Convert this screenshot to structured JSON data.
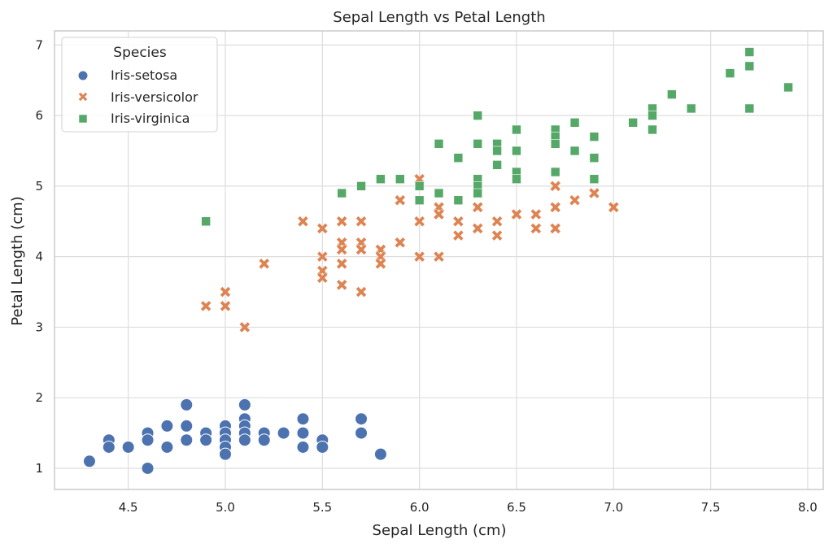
{
  "chart_data": {
    "type": "scatter",
    "title": "Sepal Length vs Petal Length",
    "xlabel": "Sepal Length (cm)",
    "ylabel": "Petal Length (cm)",
    "xlim": [
      4.12,
      8.08
    ],
    "ylim": [
      0.7,
      7.2
    ],
    "xticks": [
      4.5,
      5.0,
      5.5,
      6.0,
      6.5,
      7.0,
      7.5,
      8.0
    ],
    "xtick_labels": [
      "4.5",
      "5.0",
      "5.5",
      "6.0",
      "6.5",
      "7.0",
      "7.5",
      "8.0"
    ],
    "yticks": [
      1,
      2,
      3,
      4,
      5,
      6,
      7
    ],
    "ytick_labels": [
      "1",
      "2",
      "3",
      "4",
      "5",
      "6",
      "7"
    ],
    "grid": true,
    "legend": {
      "title": "Species",
      "placement": "top-left"
    },
    "series": [
      {
        "name": "Iris-setosa",
        "marker": "circle",
        "color": "#4c72b0",
        "points": [
          [
            4.3,
            1.1
          ],
          [
            4.4,
            1.4
          ],
          [
            4.4,
            1.3
          ],
          [
            4.5,
            1.3
          ],
          [
            4.6,
            1.5
          ],
          [
            4.6,
            1.4
          ],
          [
            4.6,
            1.0
          ],
          [
            4.7,
            1.6
          ],
          [
            4.7,
            1.3
          ],
          [
            4.8,
            1.9
          ],
          [
            4.8,
            1.6
          ],
          [
            4.8,
            1.4
          ],
          [
            4.9,
            1.5
          ],
          [
            4.9,
            1.4
          ],
          [
            5.0,
            1.6
          ],
          [
            5.0,
            1.5
          ],
          [
            5.0,
            1.4
          ],
          [
            5.0,
            1.3
          ],
          [
            5.0,
            1.2
          ],
          [
            5.1,
            1.9
          ],
          [
            5.1,
            1.7
          ],
          [
            5.1,
            1.6
          ],
          [
            5.1,
            1.5
          ],
          [
            5.1,
            1.4
          ],
          [
            5.2,
            1.5
          ],
          [
            5.2,
            1.4
          ],
          [
            5.3,
            1.5
          ],
          [
            5.4,
            1.7
          ],
          [
            5.4,
            1.5
          ],
          [
            5.4,
            1.3
          ],
          [
            5.5,
            1.4
          ],
          [
            5.5,
            1.3
          ],
          [
            5.7,
            1.7
          ],
          [
            5.7,
            1.5
          ],
          [
            5.8,
            1.2
          ]
        ]
      },
      {
        "name": "Iris-versicolor",
        "marker": "x",
        "color": "#dd8452",
        "points": [
          [
            4.9,
            3.3
          ],
          [
            5.0,
            3.5
          ],
          [
            5.0,
            3.3
          ],
          [
            5.1,
            3.0
          ],
          [
            5.2,
            3.9
          ],
          [
            5.4,
            4.5
          ],
          [
            5.5,
            4.4
          ],
          [
            5.5,
            4.0
          ],
          [
            5.5,
            3.8
          ],
          [
            5.5,
            3.7
          ],
          [
            5.6,
            4.5
          ],
          [
            5.6,
            4.2
          ],
          [
            5.6,
            4.1
          ],
          [
            5.6,
            3.9
          ],
          [
            5.6,
            3.6
          ],
          [
            5.7,
            4.5
          ],
          [
            5.7,
            4.2
          ],
          [
            5.7,
            4.1
          ],
          [
            5.7,
            3.5
          ],
          [
            5.8,
            4.1
          ],
          [
            5.8,
            4.0
          ],
          [
            5.8,
            3.9
          ],
          [
            5.9,
            4.8
          ],
          [
            5.9,
            4.2
          ],
          [
            6.0,
            5.1
          ],
          [
            6.0,
            4.5
          ],
          [
            6.0,
            4.0
          ],
          [
            6.1,
            4.7
          ],
          [
            6.1,
            4.6
          ],
          [
            6.1,
            4.0
          ],
          [
            6.2,
            4.5
          ],
          [
            6.2,
            4.3
          ],
          [
            6.3,
            4.9
          ],
          [
            6.3,
            4.7
          ],
          [
            6.3,
            4.4
          ],
          [
            6.4,
            4.5
          ],
          [
            6.4,
            4.3
          ],
          [
            6.5,
            4.6
          ],
          [
            6.6,
            4.6
          ],
          [
            6.6,
            4.4
          ],
          [
            6.7,
            5.0
          ],
          [
            6.7,
            4.7
          ],
          [
            6.7,
            4.4
          ],
          [
            6.8,
            4.8
          ],
          [
            6.9,
            4.9
          ],
          [
            7.0,
            4.7
          ]
        ]
      },
      {
        "name": "Iris-virginica",
        "marker": "square",
        "color": "#55a868",
        "points": [
          [
            4.9,
            4.5
          ],
          [
            5.6,
            4.9
          ],
          [
            5.7,
            5.0
          ],
          [
            5.8,
            5.1
          ],
          [
            5.9,
            5.1
          ],
          [
            6.0,
            5.0
          ],
          [
            6.0,
            4.8
          ],
          [
            6.1,
            5.6
          ],
          [
            6.1,
            4.9
          ],
          [
            6.2,
            5.4
          ],
          [
            6.2,
            4.8
          ],
          [
            6.3,
            6.0
          ],
          [
            6.3,
            5.6
          ],
          [
            6.3,
            5.1
          ],
          [
            6.3,
            5.0
          ],
          [
            6.3,
            4.9
          ],
          [
            6.4,
            5.6
          ],
          [
            6.4,
            5.5
          ],
          [
            6.4,
            5.3
          ],
          [
            6.5,
            5.8
          ],
          [
            6.5,
            5.5
          ],
          [
            6.5,
            5.2
          ],
          [
            6.5,
            5.1
          ],
          [
            6.7,
            5.8
          ],
          [
            6.7,
            5.7
          ],
          [
            6.7,
            5.6
          ],
          [
            6.7,
            5.2
          ],
          [
            6.8,
            5.9
          ],
          [
            6.8,
            5.5
          ],
          [
            6.9,
            5.7
          ],
          [
            6.9,
            5.4
          ],
          [
            6.9,
            5.1
          ],
          [
            7.1,
            5.9
          ],
          [
            7.2,
            6.1
          ],
          [
            7.2,
            6.0
          ],
          [
            7.2,
            5.8
          ],
          [
            7.3,
            6.3
          ],
          [
            7.4,
            6.1
          ],
          [
            7.6,
            6.6
          ],
          [
            7.7,
            6.9
          ],
          [
            7.7,
            6.7
          ],
          [
            7.7,
            6.1
          ],
          [
            7.9,
            6.4
          ]
        ]
      }
    ]
  }
}
